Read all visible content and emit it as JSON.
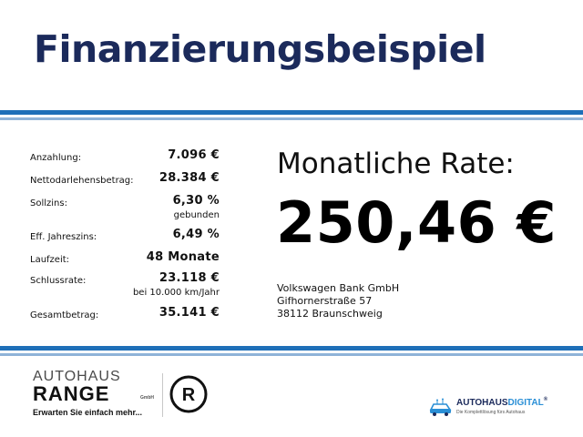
{
  "title": "Finanzierungsbeispiel",
  "terms": [
    {
      "label": "Anzahlung:",
      "value": "7.096 €",
      "sub": ""
    },
    {
      "label": "Nettodarlehensbetrag:",
      "value": "28.384 €",
      "sub": ""
    },
    {
      "label": "Sollzins:",
      "value": "6,30 %",
      "sub": "gebunden"
    },
    {
      "label": "Eff. Jahreszins:",
      "value": "6,49 %",
      "sub": ""
    },
    {
      "label": "Laufzeit:",
      "value": "48 Monate",
      "sub": ""
    },
    {
      "label": "Schlussrate:",
      "value": "23.118 €",
      "sub": "bei 10.000 km/Jahr"
    },
    {
      "label": "Gesamtbetrag:",
      "value": "35.141 €",
      "sub": ""
    }
  ],
  "rate": {
    "label": "Monatliche Rate:",
    "value": "250,46 €"
  },
  "bank": {
    "name": "Volkswagen Bank GmbH",
    "street": "Gifhornerstraße 57",
    "city": "38112 Braunschweig"
  },
  "dealer": {
    "line1": "AUTOHAUS",
    "line2": "RANGE",
    "legal": "GmbH",
    "claim": "Erwarten Sie einfach mehr...",
    "emblem_letter": "R"
  },
  "partner": {
    "name_a": "AUTOHAUS",
    "name_b": "DIGITAL",
    "reg": "®",
    "tagline": "Die Komplettlösung fürs Autohaus"
  },
  "colors": {
    "title": "#1b2a5b",
    "band_dark": "#1e6fb8",
    "band_light": "#8fb3d8",
    "accent": "#2a8fd6"
  }
}
